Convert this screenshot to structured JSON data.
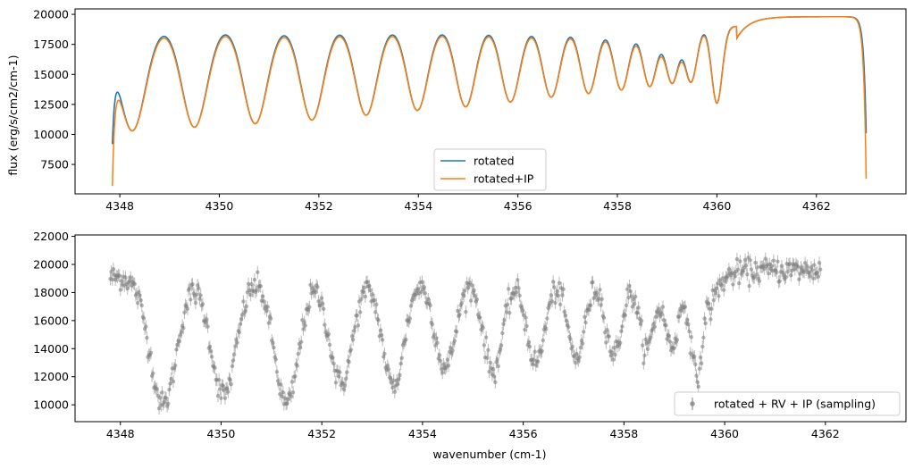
{
  "colors": {
    "rotated": "#1f77b4",
    "rotated_ip": "#ff7f0e",
    "sampling": "#808080"
  },
  "chart_data": [
    {
      "type": "line",
      "name": "top-panel",
      "ylabel": "flux (erg/s/cm2/cm-1)",
      "xlabel": "",
      "xlim": [
        4347.1,
        4363.8
      ],
      "ylim": [
        5050,
        20450
      ],
      "xticks": [
        4348,
        4350,
        4352,
        4354,
        4356,
        4358,
        4360,
        4362
      ],
      "yticks": [
        7500,
        10000,
        12500,
        15000,
        17500,
        20000
      ],
      "xtick_labels": [
        "4348",
        "4350",
        "4352",
        "4354",
        "4356",
        "4358",
        "4360",
        "4362"
      ],
      "ytick_labels": [
        "7500",
        "10000",
        "12500",
        "15000",
        "17500",
        "20000"
      ],
      "legend_position": "lower-center",
      "series": [
        {
          "name": "rotated",
          "color_key": "rotated",
          "x_range": [
            4347.85,
            4363.0
          ],
          "start_flux": 9200,
          "end_flux": 10100
        },
        {
          "name": "rotated+IP",
          "color_key": "rotated_ip",
          "x_range": [
            4347.85,
            4363.0
          ],
          "start_flux": 5700,
          "end_flux": 6300
        }
      ],
      "continuum": 19000,
      "lines": [
        {
          "center": 4348.25,
          "depth": 10300
        },
        {
          "center": 4349.5,
          "depth": 10600
        },
        {
          "center": 4350.72,
          "depth": 10900
        },
        {
          "center": 4351.86,
          "depth": 11200
        },
        {
          "center": 4352.95,
          "depth": 11600
        },
        {
          "center": 4353.98,
          "depth": 12000
        },
        {
          "center": 4354.95,
          "depth": 12300
        },
        {
          "center": 4355.85,
          "depth": 12700
        },
        {
          "center": 4356.67,
          "depth": 13100
        },
        {
          "center": 4357.42,
          "depth": 13400
        },
        {
          "center": 4358.08,
          "depth": 13700
        },
        {
          "center": 4358.65,
          "depth": 14000
        },
        {
          "center": 4359.1,
          "depth": 14300
        },
        {
          "center": 4359.48,
          "depth": 14400
        },
        {
          "center": 4360.0,
          "depth": 12600
        }
      ]
    },
    {
      "type": "scatter",
      "name": "bottom-panel",
      "ylabel": "",
      "xlabel": "wavenumber (cm-1)",
      "xlim": [
        4347.1,
        4363.6
      ],
      "ylim": [
        8800,
        22100
      ],
      "xticks": [
        4348,
        4350,
        4352,
        4354,
        4356,
        4358,
        4360,
        4362
      ],
      "yticks": [
        10000,
        12000,
        14000,
        16000,
        18000,
        20000,
        22000
      ],
      "xtick_labels": [
        "4348",
        "4350",
        "4352",
        "4354",
        "4356",
        "4358",
        "4360",
        "4362"
      ],
      "ytick_labels": [
        "10000",
        "12000",
        "14000",
        "16000",
        "18000",
        "20000",
        "22000"
      ],
      "legend_position": "lower-right",
      "series": [
        {
          "name": "rotated + RV + IP (sampling)",
          "color_key": "sampling",
          "x_range": [
            4347.8,
            4361.9
          ],
          "n_points": 700,
          "yerr": 450
        }
      ],
      "continuum": 19100,
      "lines": [
        {
          "center": 4348.85,
          "depth": 10000
        },
        {
          "center": 4350.05,
          "depth": 10700
        },
        {
          "center": 4351.3,
          "depth": 10000
        },
        {
          "center": 4352.38,
          "depth": 11500
        },
        {
          "center": 4353.42,
          "depth": 11300
        },
        {
          "center": 4354.45,
          "depth": 12600
        },
        {
          "center": 4355.4,
          "depth": 12400
        },
        {
          "center": 4356.25,
          "depth": 13000
        },
        {
          "center": 4357.05,
          "depth": 13300
        },
        {
          "center": 4357.8,
          "depth": 13600
        },
        {
          "center": 4358.45,
          "depth": 14000
        },
        {
          "center": 4358.95,
          "depth": 14200
        },
        {
          "center": 4359.45,
          "depth": 12000
        }
      ]
    }
  ]
}
